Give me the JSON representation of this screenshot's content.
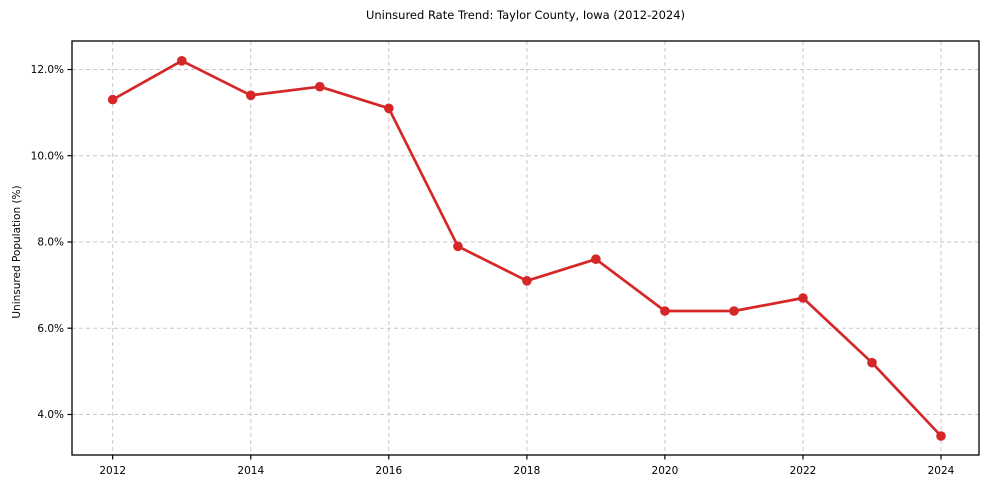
{
  "chart_data": {
    "type": "line",
    "title": "Uninsured Rate Trend: Taylor County, Iowa (2012-2024)",
    "xlabel": "",
    "ylabel": "Uninsured Population (%)",
    "x": [
      2012,
      2013,
      2014,
      2015,
      2016,
      2017,
      2018,
      2019,
      2020,
      2021,
      2022,
      2023,
      2024
    ],
    "values": [
      11.3,
      12.2,
      11.4,
      11.6,
      11.1,
      7.9,
      7.1,
      7.6,
      6.4,
      6.4,
      6.7,
      5.2,
      3.5
    ],
    "x_ticks": [
      2012,
      2014,
      2016,
      2018,
      2020,
      2022,
      2024
    ],
    "x_tick_labels": [
      "2012",
      "2014",
      "2016",
      "2018",
      "2020",
      "2022",
      "2024"
    ],
    "y_ticks": [
      4.0,
      6.0,
      8.0,
      10.0,
      12.0
    ],
    "y_tick_labels": [
      "4.0%",
      "6.0%",
      "8.0%",
      "10.0%",
      "12.0%"
    ],
    "xlim": [
      2011.41,
      2024.55
    ],
    "ylim": [
      3.06,
      12.66
    ],
    "grid": true,
    "legend_position": "none",
    "line_color": "#d62728",
    "marker_color": "#d62728",
    "marker_shape": "circle",
    "grid_color": "#c8c8c8",
    "axis_color": "#000000",
    "tick_label_color": "#000000",
    "title_color": "#000000",
    "background_color": "#ffffff"
  }
}
